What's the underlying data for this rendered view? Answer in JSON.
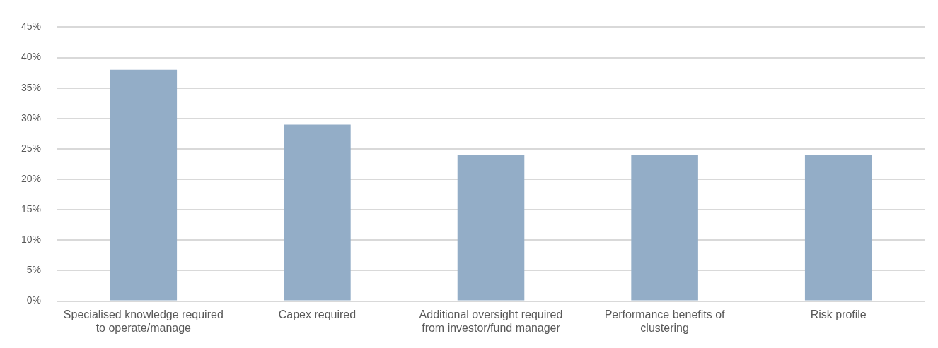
{
  "chart_data": {
    "type": "bar",
    "categories": [
      "Specialised knowledge required to operate/manage",
      "Capex required",
      "Additional oversight required from investor/fund manager",
      "Performance benefits of clustering",
      "Risk profile"
    ],
    "values": [
      38,
      29,
      24,
      24,
      24
    ],
    "color": "#93adc7",
    "ylim": [
      0,
      45
    ],
    "yticks": [
      {
        "value": 0,
        "label": "0%"
      },
      {
        "value": 5,
        "label": "5%"
      },
      {
        "value": 10,
        "label": "10%"
      },
      {
        "value": 15,
        "label": "15%"
      },
      {
        "value": 20,
        "label": "20%"
      },
      {
        "value": 25,
        "label": "25%"
      },
      {
        "value": 30,
        "label": "30%"
      },
      {
        "value": 35,
        "label": "35%"
      },
      {
        "value": 40,
        "label": "40%"
      },
      {
        "value": 45,
        "label": "45%"
      }
    ],
    "grid": "y",
    "legend": false
  }
}
